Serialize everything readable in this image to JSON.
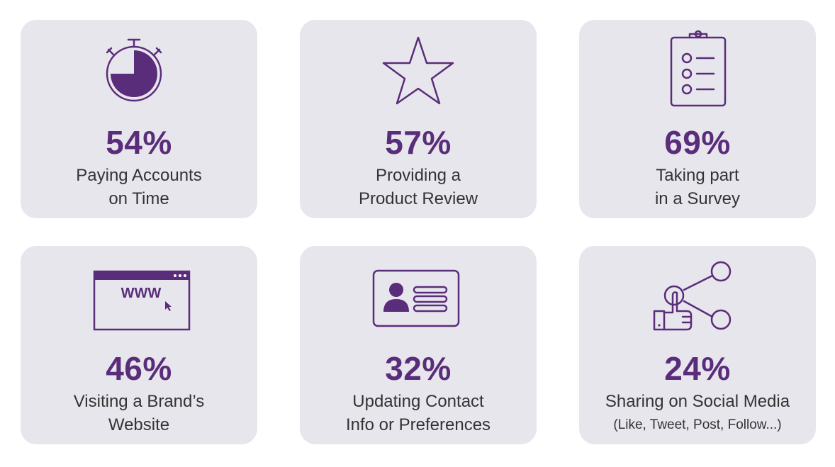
{
  "colors": {
    "accent": "#5a2d7a",
    "card_bg": "#e8e6ed",
    "text": "#333333"
  },
  "cards": [
    {
      "icon": "stopwatch-icon",
      "percent": "54%",
      "line1": "Paying Accounts",
      "line2": "on Time"
    },
    {
      "icon": "star-icon",
      "percent": "57%",
      "line1": "Providing a",
      "line2": "Product Review"
    },
    {
      "icon": "clipboard-checklist-icon",
      "percent": "69%",
      "line1": "Taking part",
      "line2": "in a Survey"
    },
    {
      "icon": "browser-window-icon",
      "icon_text": "WWW",
      "percent": "46%",
      "line1": "Visiting a Brand’s",
      "line2": "Website"
    },
    {
      "icon": "contact-card-icon",
      "percent": "32%",
      "line1": "Updating Contact",
      "line2": "Info or Preferences"
    },
    {
      "icon": "social-share-icon",
      "percent": "24%",
      "line1": "Sharing on Social Media",
      "line2": "(Like, Tweet, Post, Follow...)"
    }
  ]
}
